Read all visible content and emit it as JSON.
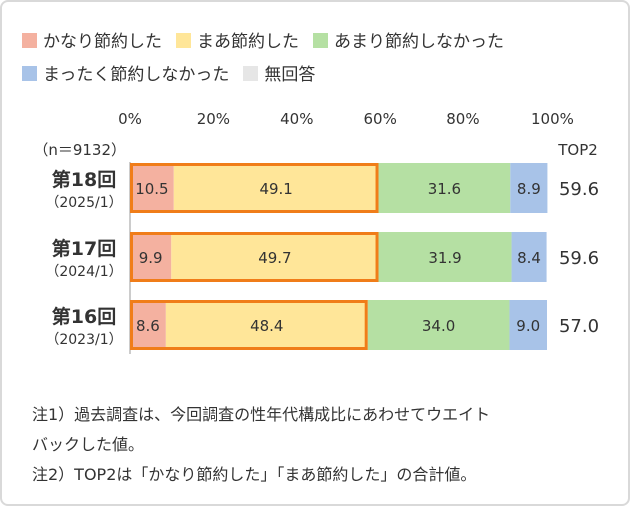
{
  "legend": [
    {
      "label": "かなり節約した",
      "color": "#f4b1a0"
    },
    {
      "label": "まあ節約した",
      "color": "#ffe699"
    },
    {
      "label": "あまり節約しなかった",
      "color": "#b5e0a3"
    },
    {
      "label": "まったく節約しなかった",
      "color": "#a8c3e8"
    },
    {
      "label": "無回答",
      "color": "#e6e6e6"
    }
  ],
  "sample_label": "（n＝9132）",
  "top2_header": "TOP2",
  "highlight_color": "#f07d19",
  "chart_data": {
    "type": "bar",
    "orientation": "horizontal",
    "stacked": true,
    "percent": true,
    "xlim": [
      0,
      100
    ],
    "xticks": [
      "0%",
      "20%",
      "40%",
      "60%",
      "80%",
      "100%"
    ],
    "categories": [
      {
        "label": "第18回",
        "sublabel": "（2025/1）",
        "top2": "59.6"
      },
      {
        "label": "第17回",
        "sublabel": "（2024/1）",
        "top2": "59.6"
      },
      {
        "label": "第16回",
        "sublabel": "（2023/1）",
        "top2": "57.0"
      }
    ],
    "series": [
      {
        "name": "かなり節約した",
        "values": [
          10.5,
          9.9,
          8.6
        ],
        "labels": [
          "10.5",
          "9.9",
          "8.6"
        ],
        "color": "#f4b1a0"
      },
      {
        "name": "まあ節約した",
        "values": [
          49.1,
          49.7,
          48.4
        ],
        "labels": [
          "49.1",
          "49.7",
          "48.4"
        ],
        "color": "#ffe699"
      },
      {
        "name": "あまり節約しなかった",
        "values": [
          31.6,
          31.9,
          34.0
        ],
        "labels": [
          "31.6",
          "31.9",
          "34.0"
        ],
        "color": "#b5e0a3"
      },
      {
        "name": "まったく節約しなかった",
        "values": [
          8.9,
          8.4,
          9.0
        ],
        "labels": [
          "8.9",
          "8.4",
          "9.0"
        ],
        "color": "#a8c3e8"
      },
      {
        "name": "無回答",
        "values": [
          0,
          0,
          0
        ],
        "labels": [
          "",
          "",
          ""
        ],
        "color": "#e6e6e6"
      }
    ]
  },
  "notes": [
    "注1）過去調査は、今回調査の性年代構成比にあわせてウエイト",
    "バックした値。",
    "注2）TOP2は「かなり節約した」「まあ節約した」の合計値。"
  ]
}
